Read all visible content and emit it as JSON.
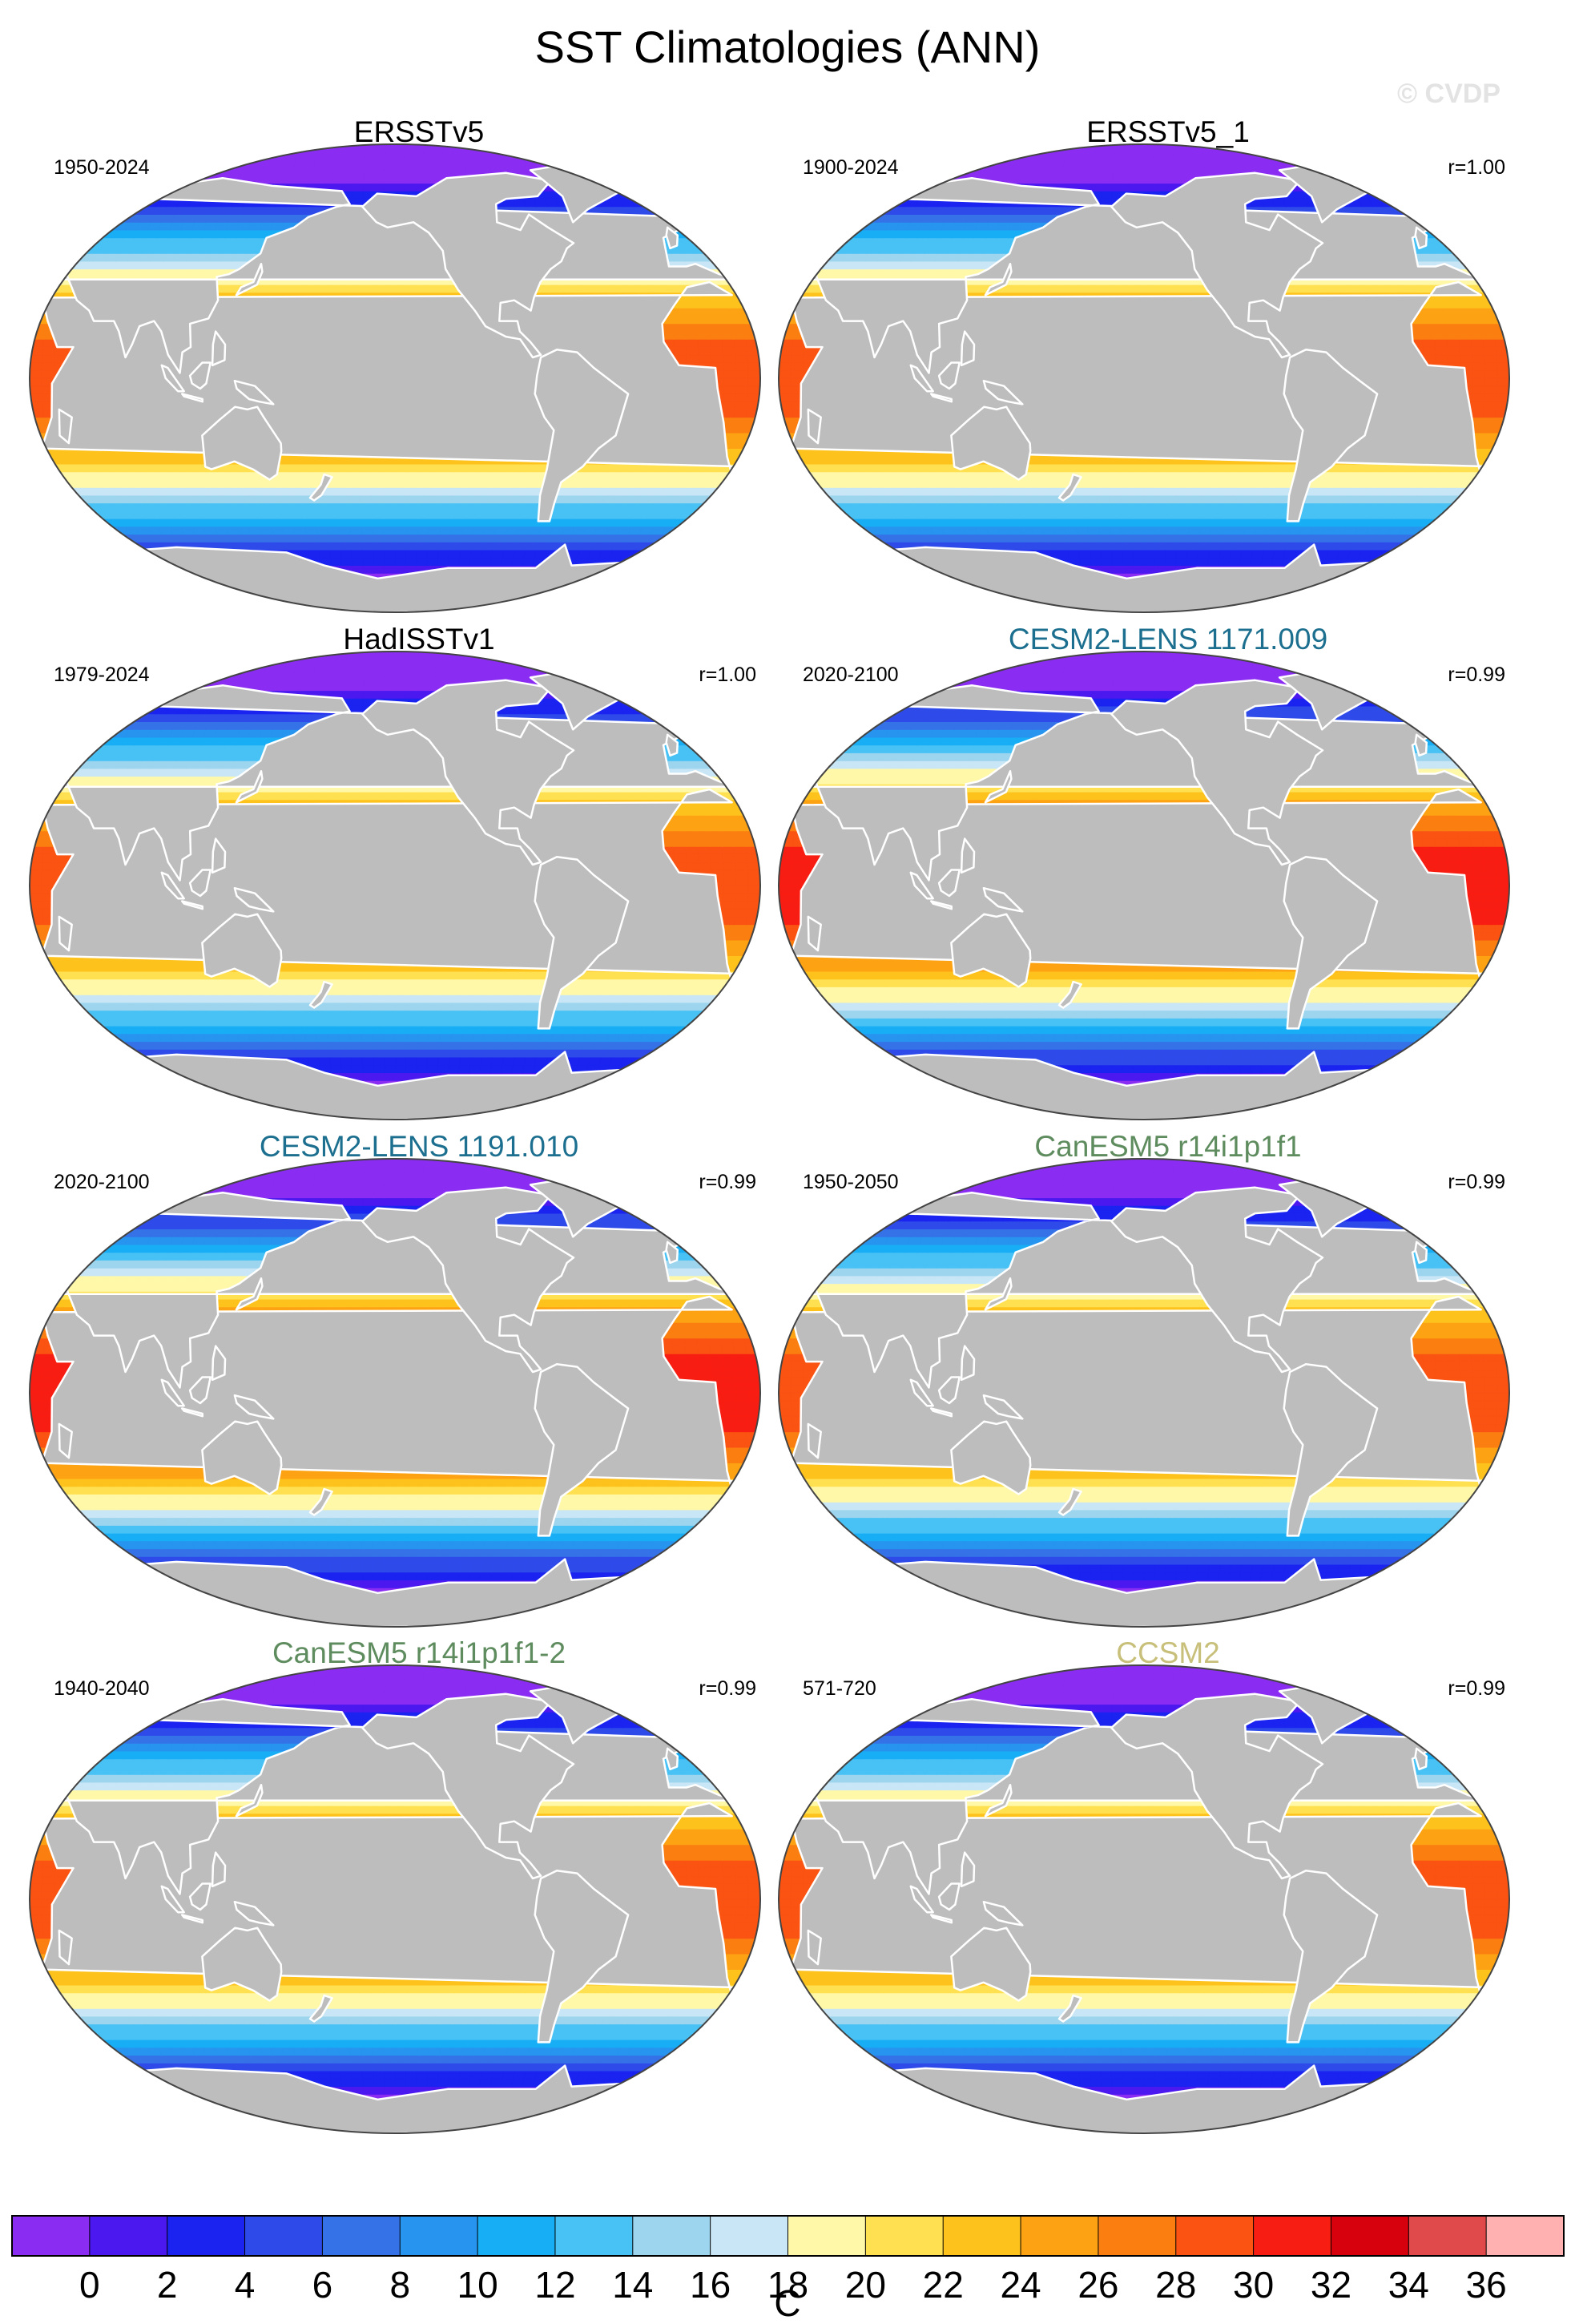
{
  "title": "SST Climatologies (ANN)",
  "watermark": "© CVDP",
  "colorbar": {
    "ticks": [
      "0",
      "2",
      "4",
      "6",
      "8",
      "10",
      "12",
      "14",
      "16",
      "18",
      "20",
      "22",
      "24",
      "26",
      "28",
      "30",
      "32",
      "34",
      "36"
    ],
    "units": "C",
    "colors": [
      "#8a2cf2",
      "#4b18f0",
      "#1a23ef",
      "#2e4bea",
      "#3572e8",
      "#2794ef",
      "#18aef5",
      "#48c2f5",
      "#9dd4ee",
      "#c8e6f5",
      "#fff8a8",
      "#ffe050",
      "#fec21d",
      "#fda212",
      "#fb7e10",
      "#fa5312",
      "#f81d12",
      "#d7000d",
      "#e04a4a",
      "#ffb0b0"
    ]
  },
  "chart_data": [
    {
      "type": "heatmap",
      "variable": "SST",
      "units": "C",
      "title": "ERSSTv5",
      "title_color": "#000000",
      "period": "1950-2024",
      "r": "",
      "warm_pool_peak_C": 30,
      "clevels": [
        0,
        2,
        4,
        6,
        8,
        10,
        12,
        14,
        16,
        18,
        20,
        22,
        24,
        26,
        28,
        30,
        32,
        34,
        36
      ]
    },
    {
      "type": "heatmap",
      "variable": "SST",
      "units": "C",
      "title": "ERSSTv5_1",
      "title_color": "#000000",
      "period": "1900-2024",
      "r": "r=1.00",
      "warm_pool_peak_C": 30,
      "clevels": [
        0,
        2,
        4,
        6,
        8,
        10,
        12,
        14,
        16,
        18,
        20,
        22,
        24,
        26,
        28,
        30,
        32,
        34,
        36
      ]
    },
    {
      "type": "heatmap",
      "variable": "SST",
      "units": "C",
      "title": "HadISSTv1",
      "title_color": "#000000",
      "period": "1979-2024",
      "r": "r=1.00",
      "warm_pool_peak_C": 30,
      "clevels": [
        0,
        2,
        4,
        6,
        8,
        10,
        12,
        14,
        16,
        18,
        20,
        22,
        24,
        26,
        28,
        30,
        32,
        34,
        36
      ]
    },
    {
      "type": "heatmap",
      "variable": "SST",
      "units": "C",
      "title": "CESM2-LENS 1171.009",
      "title_color": "#1c6f8f",
      "period": "2020-2100",
      "r": "r=0.99",
      "warm_pool_peak_C": 32,
      "clevels": [
        0,
        2,
        4,
        6,
        8,
        10,
        12,
        14,
        16,
        18,
        20,
        22,
        24,
        26,
        28,
        30,
        32,
        34,
        36
      ]
    },
    {
      "type": "heatmap",
      "variable": "SST",
      "units": "C",
      "title": "CESM2-LENS 1191.010",
      "title_color": "#1c6f8f",
      "period": "2020-2100",
      "r": "r=0.99",
      "warm_pool_peak_C": 32,
      "clevels": [
        0,
        2,
        4,
        6,
        8,
        10,
        12,
        14,
        16,
        18,
        20,
        22,
        24,
        26,
        28,
        30,
        32,
        34,
        36
      ]
    },
    {
      "type": "heatmap",
      "variable": "SST",
      "units": "C",
      "title": "CanESM5 r14i1p1f1",
      "title_color": "#5e8c5e",
      "period": "1950-2050",
      "r": "r=0.99",
      "warm_pool_peak_C": 30,
      "clevels": [
        0,
        2,
        4,
        6,
        8,
        10,
        12,
        14,
        16,
        18,
        20,
        22,
        24,
        26,
        28,
        30,
        32,
        34,
        36
      ]
    },
    {
      "type": "heatmap",
      "variable": "SST",
      "units": "C",
      "title": "CanESM5 r14i1p1f1-2",
      "title_color": "#5e8c5e",
      "period": "1940-2040",
      "r": "r=0.99",
      "warm_pool_peak_C": 30,
      "clevels": [
        0,
        2,
        4,
        6,
        8,
        10,
        12,
        14,
        16,
        18,
        20,
        22,
        24,
        26,
        28,
        30,
        32,
        34,
        36
      ]
    },
    {
      "type": "heatmap",
      "variable": "SST",
      "units": "C",
      "title": "CCSM2",
      "title_color": "#c8c07a",
      "period": "571-720",
      "r": "r=0.99",
      "warm_pool_peak_C": 30,
      "clevels": [
        0,
        2,
        4,
        6,
        8,
        10,
        12,
        14,
        16,
        18,
        20,
        22,
        24,
        26,
        28,
        30,
        32,
        34,
        36
      ]
    }
  ]
}
